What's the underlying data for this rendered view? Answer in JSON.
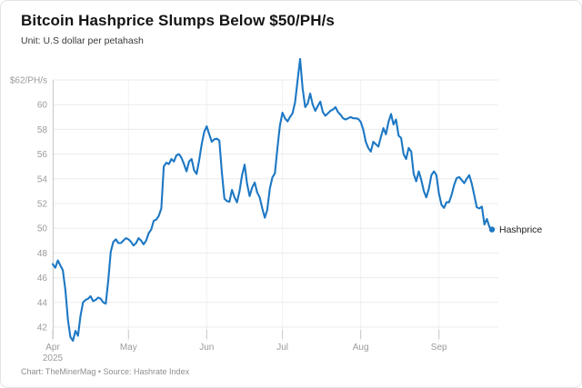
{
  "card": {
    "title": "Bitcoin Hashprice Slumps Below $50/PH/s",
    "subtitle": "Unit: U.S dollar per petahash",
    "footer": "Chart: TheMinerMag • Source: Hashrate Index"
  },
  "colors": {
    "line": "#1d78c4",
    "grid": "#ebebeb",
    "axis": "#cccccc",
    "tick_label": "#9a9a9a",
    "end_label_text": "#1d1d1d",
    "background": "#ffffff"
  },
  "chart_data": {
    "type": "line",
    "title": "Bitcoin Hashprice Slumps Below $50/PH/s",
    "unit_label": "U.S dollar per petahash",
    "xlabel": "",
    "ylabel": "$/PH/s",
    "ylim": [
      40.5,
      64
    ],
    "grid": true,
    "legend_position": "end-of-line",
    "end_label": "Hashprice",
    "last_value": 49.9,
    "peak_value": 63.7,
    "min_value": 40.9,
    "y_ticks": [
      {
        "value": 62,
        "label": "$62/PH/s"
      },
      {
        "value": 60,
        "label": "60"
      },
      {
        "value": 58,
        "label": "58"
      },
      {
        "value": 56,
        "label": "56"
      },
      {
        "value": 54,
        "label": "54"
      },
      {
        "value": 52,
        "label": "52"
      },
      {
        "value": 50,
        "label": "50"
      },
      {
        "value": 48,
        "label": "48"
      },
      {
        "value": 46,
        "label": "46"
      },
      {
        "value": 44,
        "label": "44"
      },
      {
        "value": 42,
        "label": "42"
      }
    ],
    "x_ticks": [
      {
        "label": "Apr",
        "sublabel": "2025",
        "day_index": 0
      },
      {
        "label": "May",
        "sublabel": "",
        "day_index": 30
      },
      {
        "label": "Jun",
        "sublabel": "",
        "day_index": 61
      },
      {
        "label": "Jul",
        "sublabel": "",
        "day_index": 91
      },
      {
        "label": "Aug",
        "sublabel": "",
        "day_index": 122
      },
      {
        "label": "Sep",
        "sublabel": "",
        "day_index": 153
      }
    ],
    "series": [
      {
        "name": "Hashprice",
        "color": "#1d78c4",
        "start_date": "2025-04-01",
        "frequency": "daily",
        "values": [
          47.1,
          46.8,
          47.4,
          47.0,
          46.6,
          45.0,
          42.6,
          41.2,
          40.9,
          41.7,
          41.3,
          42.9,
          44.0,
          44.2,
          44.3,
          44.5,
          44.1,
          44.2,
          44.4,
          44.3,
          44.0,
          43.9,
          45.8,
          48.1,
          48.9,
          49.1,
          48.8,
          48.8,
          49.0,
          49.2,
          49.1,
          48.9,
          48.6,
          48.8,
          49.2,
          49.0,
          48.7,
          49.0,
          49.6,
          49.9,
          50.6,
          50.7,
          51.0,
          51.6,
          55.0,
          55.3,
          55.2,
          55.6,
          55.4,
          55.9,
          56.0,
          55.7,
          55.2,
          54.6,
          55.4,
          55.6,
          54.7,
          54.4,
          55.5,
          56.8,
          57.8,
          58.25,
          57.6,
          57.0,
          57.2,
          57.25,
          57.1,
          54.5,
          52.4,
          52.2,
          52.15,
          53.1,
          52.5,
          52.1,
          53.0,
          54.3,
          55.15,
          53.6,
          52.6,
          53.3,
          53.7,
          52.9,
          52.5,
          51.6,
          50.85,
          51.5,
          53.2,
          54.1,
          54.45,
          56.5,
          58.3,
          59.35,
          58.9,
          58.65,
          59.0,
          59.3,
          60.2,
          62.0,
          63.7,
          61.3,
          59.8,
          60.1,
          60.9,
          60.0,
          59.5,
          59.9,
          60.25,
          59.4,
          59.1,
          59.3,
          59.5,
          59.6,
          59.8,
          59.4,
          59.2,
          58.9,
          58.8,
          58.9,
          59.0,
          58.9,
          58.9,
          58.85,
          58.6,
          58.0,
          57.0,
          56.5,
          56.2,
          57.0,
          56.8,
          56.6,
          57.4,
          58.1,
          57.6,
          58.6,
          59.25,
          58.4,
          58.8,
          57.5,
          57.3,
          56.0,
          55.6,
          56.5,
          56.2,
          54.4,
          53.8,
          54.6,
          53.9,
          53.0,
          52.5,
          53.2,
          54.3,
          54.6,
          54.3,
          52.8,
          51.9,
          51.65,
          52.1,
          52.1,
          52.7,
          53.5,
          54.05,
          54.15,
          53.9,
          53.65,
          54.0,
          54.3,
          53.6,
          52.65,
          51.7,
          51.6,
          51.75,
          50.3,
          50.75,
          50.1,
          49.9
        ]
      }
    ]
  }
}
